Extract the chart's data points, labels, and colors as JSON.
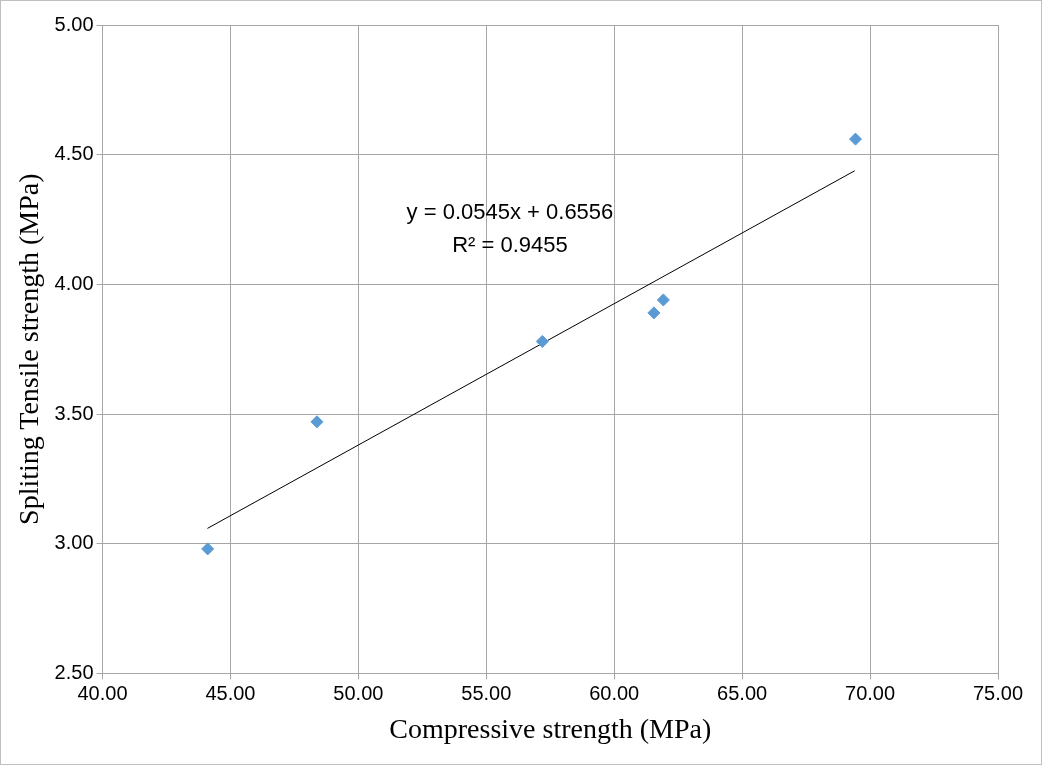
{
  "chart_data": {
    "type": "scatter",
    "xlabel": "Compressive strength (MPa)",
    "ylabel": "Spliting Tensile strength (MPa)",
    "x": [
      44.11,
      48.38,
      57.19,
      61.55,
      61.92,
      69.43
    ],
    "series": [
      {
        "color": "#5b9bd5",
        "values": [
          2.98,
          3.47,
          3.78,
          3.89,
          3.94,
          4.56
        ],
        "marker": "diamond"
      },
      {
        "type": "line",
        "color": "#000000",
        "x": [
          44.1,
          69.4
        ],
        "values": [
          3.059,
          4.438
        ],
        "marker": "none"
      }
    ],
    "xlim": [
      40,
      75
    ],
    "xticks": [
      {
        "value": 40,
        "label": "40.00"
      },
      {
        "value": 45,
        "label": "45.00"
      },
      {
        "value": 50,
        "label": "50.00"
      },
      {
        "value": 55,
        "label": "55.00"
      },
      {
        "value": 60,
        "label": "60.00"
      },
      {
        "value": 65,
        "label": "65.00"
      },
      {
        "value": 70,
        "label": "70.00"
      },
      {
        "value": 75,
        "label": "75.00"
      }
    ],
    "ylim": [
      2.5,
      5
    ],
    "yticks": [
      {
        "value": 2.5,
        "label": "2.50"
      },
      {
        "value": 3,
        "label": "3.00"
      },
      {
        "value": 3.5,
        "label": "3.50"
      },
      {
        "value": 4,
        "label": "4.00"
      },
      {
        "value": 4.5,
        "label": "4.50"
      },
      {
        "value": 5,
        "label": "5.00"
      }
    ],
    "grid": true,
    "legend": false,
    "annotations": [
      "y = 0.0545x + 0.6556",
      "R² = 0.9455"
    ]
  }
}
